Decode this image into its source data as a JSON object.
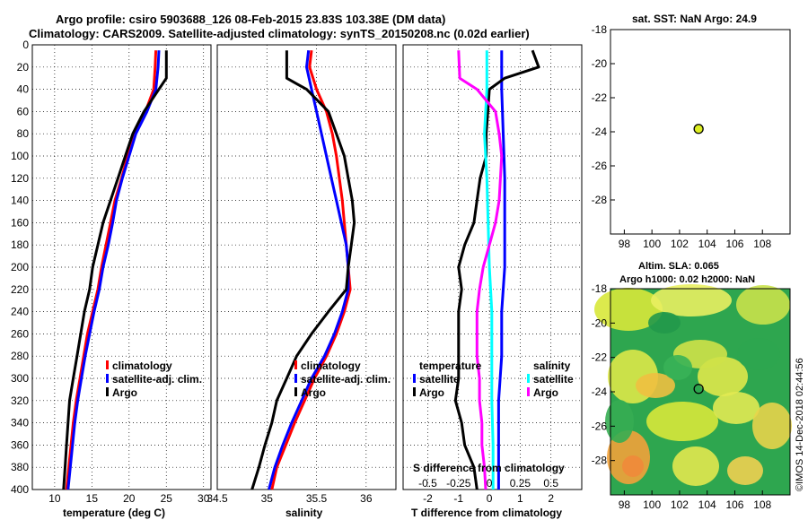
{
  "title": {
    "line1": "Argo profile: csiro 5903688_126 08-Feb-2015 23.83S 103.38E (DM data)",
    "line2": "Climatology: CARS2009. Satellite-adjusted climatology: synTS_20150208.nc (0.02d earlier)"
  },
  "colors": {
    "climatology": "#ff0000",
    "satellite": "#0000ff",
    "argo": "#000000",
    "sat_sal": "#00ffff",
    "argo_sal": "#ff00ff",
    "dot": "#ddee22"
  },
  "chart_data": [
    {
      "id": "temperature",
      "type": "line",
      "xlabel": "temperature (deg C)",
      "xlim": [
        7,
        31
      ],
      "ylim": [
        0,
        400
      ],
      "xticks": [
        10,
        15,
        20,
        25,
        30
      ],
      "yticks": [
        0,
        20,
        40,
        60,
        80,
        100,
        120,
        140,
        160,
        180,
        200,
        220,
        240,
        260,
        280,
        300,
        320,
        340,
        360,
        380,
        400
      ],
      "legend": [
        "climatology",
        "satellite-adj. clim.",
        "Argo"
      ],
      "series": [
        {
          "name": "climatology",
          "color": "red",
          "depth": [
            5,
            20,
            40,
            60,
            80,
            100,
            120,
            140,
            160,
            180,
            200,
            220,
            240,
            260,
            280,
            300,
            320,
            340,
            360,
            380,
            400
          ],
          "values": [
            23.6,
            23.5,
            23.3,
            22.2,
            20.6,
            19.8,
            19.0,
            18.1,
            17.5,
            16.9,
            16.3,
            15.8,
            15.1,
            14.4,
            13.9,
            13.4,
            12.9,
            12.5,
            12.2,
            11.9,
            11.6
          ]
        },
        {
          "name": "satellite-adj. clim.",
          "color": "blue",
          "depth": [
            5,
            20,
            40,
            60,
            80,
            100,
            120,
            140,
            160,
            180,
            200,
            220,
            240,
            260,
            280,
            300,
            320,
            340,
            360,
            380,
            400
          ],
          "values": [
            24.0,
            23.9,
            23.6,
            22.4,
            20.9,
            20.0,
            19.1,
            18.3,
            17.8,
            17.2,
            16.5,
            16.0,
            15.3,
            14.7,
            14.1,
            13.6,
            13.1,
            12.7,
            12.4,
            12.1,
            11.8
          ]
        },
        {
          "name": "Argo",
          "color": "black",
          "depth": [
            5,
            30,
            40,
            60,
            80,
            100,
            120,
            140,
            160,
            180,
            200,
            220,
            240,
            260,
            280,
            300,
            320,
            340,
            360,
            380,
            400
          ],
          "values": [
            25.0,
            25.0,
            24.0,
            22.0,
            20.5,
            19.5,
            18.5,
            17.5,
            16.5,
            15.8,
            15.1,
            14.7,
            14.0,
            13.5,
            13.0,
            12.5,
            12.0,
            11.8,
            11.6,
            11.4,
            11.2
          ]
        }
      ]
    },
    {
      "id": "salinity",
      "type": "line",
      "xlabel": "salinity",
      "xlim": [
        34.5,
        36.3
      ],
      "ylim": [
        0,
        400
      ],
      "xticks": [
        "34.5",
        "35",
        "35.5",
        "36"
      ],
      "yticks": [
        0,
        20,
        40,
        60,
        80,
        100,
        120,
        140,
        160,
        180,
        200,
        220,
        240,
        260,
        280,
        300,
        320,
        340,
        360,
        380,
        400
      ],
      "legend": [
        "climatology",
        "satellite-adj. clim.",
        "Argo"
      ],
      "series": [
        {
          "name": "climatology",
          "color": "red",
          "depth": [
            5,
            20,
            40,
            60,
            80,
            100,
            120,
            140,
            160,
            180,
            200,
            220,
            240,
            260,
            280,
            300,
            320,
            340,
            360,
            380,
            400
          ],
          "values": [
            35.45,
            35.43,
            35.5,
            35.6,
            35.66,
            35.7,
            35.73,
            35.76,
            35.78,
            35.8,
            35.82,
            35.84,
            35.78,
            35.7,
            35.6,
            35.48,
            35.38,
            35.28,
            35.19,
            35.1,
            35.05
          ]
        },
        {
          "name": "satellite-adj. clim.",
          "color": "blue",
          "depth": [
            5,
            20,
            40,
            60,
            80,
            100,
            120,
            140,
            160,
            180,
            200,
            220,
            240,
            260,
            280,
            300,
            320,
            340,
            360,
            380,
            400
          ],
          "values": [
            35.42,
            35.4,
            35.45,
            35.5,
            35.55,
            35.6,
            35.65,
            35.7,
            35.75,
            35.8,
            35.82,
            35.82,
            35.76,
            35.68,
            35.58,
            35.45,
            35.35,
            35.25,
            35.16,
            35.08,
            35.02
          ]
        },
        {
          "name": "Argo",
          "color": "black",
          "depth": [
            5,
            30,
            35,
            40,
            60,
            80,
            100,
            120,
            140,
            160,
            180,
            200,
            220,
            240,
            260,
            280,
            300,
            320,
            340,
            360,
            380,
            400
          ],
          "values": [
            35.2,
            35.2,
            35.3,
            35.4,
            35.62,
            35.7,
            35.78,
            35.82,
            35.86,
            35.88,
            35.85,
            35.82,
            35.8,
            35.62,
            35.45,
            35.3,
            35.2,
            35.1,
            35.05,
            34.98,
            34.92,
            34.85
          ]
        }
      ]
    },
    {
      "id": "difference",
      "type": "line",
      "xlabel": "T difference from climatology",
      "x2label": "S difference from climatology",
      "xlim": [
        -2.8,
        3.0
      ],
      "x2lim": [
        -0.7,
        0.75
      ],
      "ylim": [
        0,
        400
      ],
      "xticks": [
        "-2",
        "-1",
        "0",
        "1",
        "2"
      ],
      "x2ticks": [
        "-0.5",
        "-0.25",
        "0",
        "0.25",
        "0.5"
      ],
      "yticks": [
        0,
        20,
        40,
        60,
        80,
        100,
        120,
        140,
        160,
        180,
        200,
        220,
        240,
        260,
        280,
        300,
        320,
        340,
        360,
        380,
        400
      ],
      "legend_left_title": "temperature",
      "legend_right_title": "salinity",
      "legend_left": [
        "satellite",
        "Argo"
      ],
      "legend_right": [
        "satellite",
        "Argo"
      ],
      "series": [
        {
          "name": "T satellite",
          "color": "blue",
          "axis": "T",
          "depth": [
            5,
            40,
            80,
            120,
            160,
            200,
            240,
            280,
            320,
            360,
            400
          ],
          "values": [
            0.4,
            0.4,
            0.45,
            0.5,
            0.5,
            0.5,
            0.4,
            0.4,
            0.3,
            0.3,
            0.3
          ]
        },
        {
          "name": "T Argo",
          "color": "black",
          "axis": "T",
          "depth": [
            5,
            20,
            30,
            40,
            60,
            80,
            100,
            110,
            120,
            140,
            160,
            180,
            200,
            220,
            240,
            260,
            280,
            300,
            320,
            340,
            360,
            380,
            400
          ],
          "values": [
            1.4,
            1.6,
            0.5,
            0.0,
            -0.05,
            -0.1,
            -0.1,
            -0.2,
            -0.3,
            -0.4,
            -0.5,
            -0.8,
            -1.0,
            -0.9,
            -1.0,
            -1.0,
            -1.0,
            -1.0,
            -1.1,
            -0.9,
            -0.8,
            -0.5,
            -0.4
          ]
        },
        {
          "name": "S satellite",
          "color": "cyan",
          "axis": "S",
          "depth": [
            5,
            40,
            80,
            120,
            160,
            200,
            240,
            280,
            320,
            360,
            400
          ],
          "values": [
            -0.02,
            -0.02,
            -0.04,
            -0.02,
            -0.01,
            0.0,
            0.02,
            0.02,
            0.02,
            0.03,
            0.03
          ]
        },
        {
          "name": "S Argo",
          "color": "magenta",
          "axis": "S",
          "depth": [
            5,
            30,
            40,
            60,
            80,
            100,
            120,
            140,
            160,
            180,
            200,
            220,
            240,
            260,
            280,
            300,
            320,
            340,
            360,
            380,
            400
          ],
          "values": [
            -0.25,
            -0.24,
            -0.1,
            0.05,
            0.08,
            0.1,
            0.09,
            0.08,
            0.05,
            0.0,
            -0.05,
            -0.08,
            -0.1,
            -0.1,
            -0.1,
            -0.08,
            -0.08,
            -0.06,
            -0.06,
            -0.04,
            -0.03
          ]
        }
      ]
    },
    {
      "id": "sat_sst",
      "type": "scatter",
      "title": "sat. SST: NaN Argo: 24.9",
      "xlim": [
        97,
        110
      ],
      "ylim": [
        -30,
        -18
      ],
      "xticks": [
        "98",
        "100",
        "102",
        "104",
        "106",
        "108"
      ],
      "yticks": [
        "-18",
        "-20",
        "-22",
        "-24",
        "-26",
        "-28"
      ],
      "points": [
        {
          "x": 103.38,
          "y": -23.83
        }
      ]
    },
    {
      "id": "sla_map",
      "type": "heatmap",
      "title1": "Altim. SLA: 0.065",
      "title2": "Argo h1000: 0.02 h2000: NaN",
      "xlim": [
        97,
        110
      ],
      "ylim": [
        -30,
        -18
      ],
      "xticks": [
        "98",
        "100",
        "102",
        "104",
        "106",
        "108"
      ],
      "yticks": [
        "-18",
        "-20",
        "-22",
        "-24",
        "-26",
        "-28"
      ],
      "points": [
        {
          "x": 103.38,
          "y": -23.83
        }
      ]
    }
  ],
  "credit": "©IMOS 14-Dec-2018 02:44:56"
}
